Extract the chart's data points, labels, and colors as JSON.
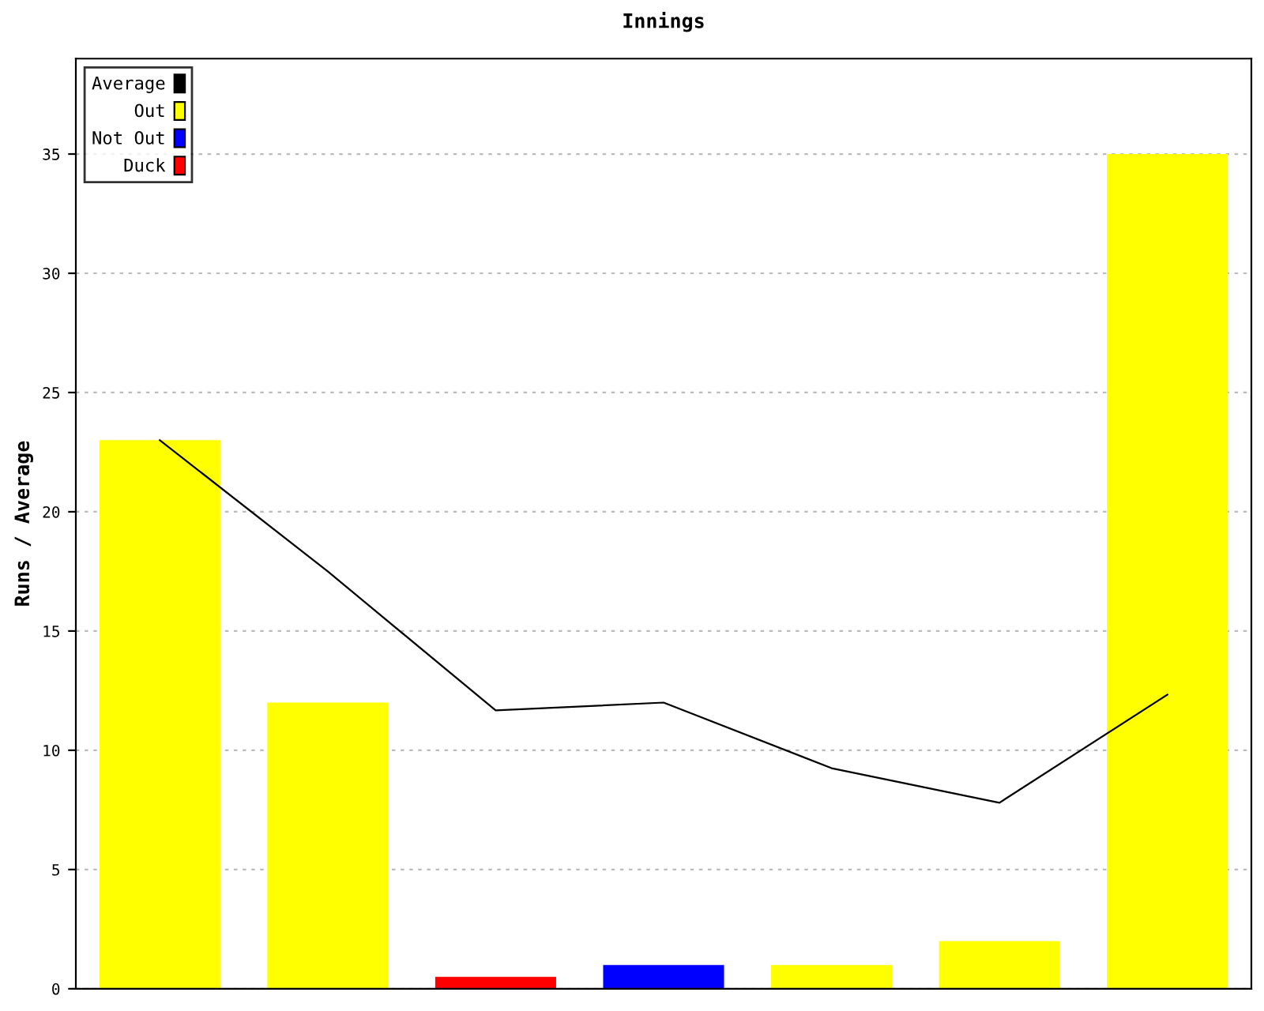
{
  "chart_data": {
    "type": "bar",
    "title": "Innings",
    "ylabel": "Runs / Average",
    "categories": [
      null,
      null,
      null,
      null,
      null,
      null,
      null
    ],
    "series": [
      {
        "name": "Average",
        "type": "line",
        "color": "#000000",
        "values": [
          23,
          17.5,
          11.67,
          12,
          9.25,
          7.8,
          12.33
        ]
      },
      {
        "name": "Out",
        "color": "#ffff00",
        "values": [
          23,
          12,
          null,
          null,
          1,
          2,
          35
        ]
      },
      {
        "name": "Not Out",
        "color": "#0000ff",
        "values": [
          null,
          null,
          null,
          1,
          null,
          null,
          null
        ]
      },
      {
        "name": "Duck",
        "color": "#ff0000",
        "values": [
          null,
          null,
          0.5,
          null,
          null,
          null,
          null
        ]
      }
    ],
    "ylim": [
      0,
      39
    ],
    "yticks": [
      0,
      5,
      10,
      15,
      20,
      25,
      30,
      35
    ],
    "grid": "y",
    "legend": "top left",
    "tick_labels": "y",
    "marker": "none",
    "line_style": "solid"
  }
}
